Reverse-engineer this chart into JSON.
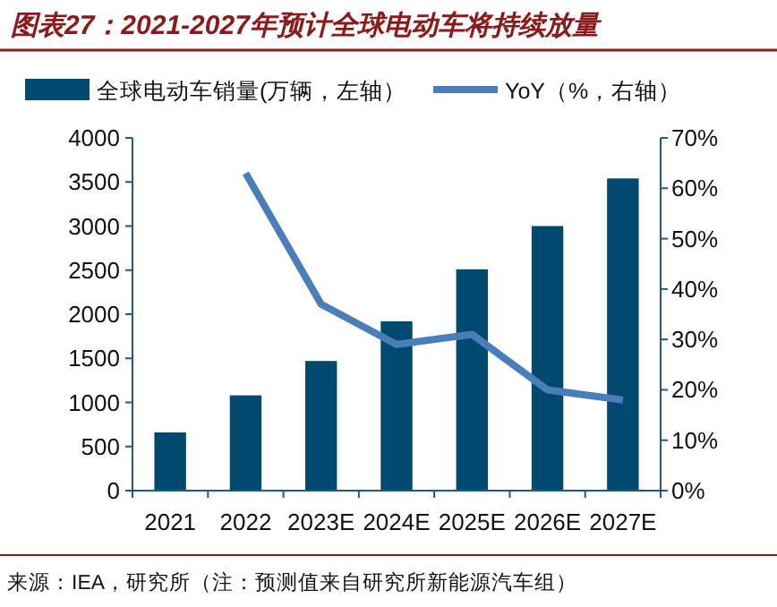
{
  "chart_data": {
    "type": "bar",
    "title": "图表27：2021-2027年预计全球电动车将持续放量",
    "categories": [
      "2021",
      "2022",
      "2023E",
      "2024E",
      "2025E",
      "2026E",
      "2027E"
    ],
    "series": [
      {
        "name": "全球电动车销量(万辆，左轴）",
        "color": "#004a70",
        "values": [
          660,
          1080,
          1470,
          1920,
          2510,
          3000,
          3540
        ]
      },
      {
        "name": "YoY（%，右轴）",
        "type": "line",
        "axis": "y2",
        "color": "#4a7ebb",
        "values": [
          null,
          63,
          37,
          29,
          31,
          20,
          18
        ]
      }
    ],
    "ylim": [
      0,
      4000
    ],
    "yticks": [
      0,
      500,
      1000,
      1500,
      2000,
      2500,
      3000,
      3500,
      4000
    ],
    "y2lim": [
      0,
      70
    ],
    "y2ticks": [
      {
        "value": 0,
        "label": "0%"
      },
      {
        "value": 10,
        "label": "10%"
      },
      {
        "value": 20,
        "label": "20%"
      },
      {
        "value": 30,
        "label": "30%"
      },
      {
        "value": 40,
        "label": "40%"
      },
      {
        "value": 50,
        "label": "50%"
      },
      {
        "value": 60,
        "label": "60%"
      },
      {
        "value": 70,
        "label": "70%"
      }
    ],
    "legend": "top",
    "annotations": [
      "来源：IEA，研究所（注：预测值来自研究所新能源汽车组）"
    ]
  }
}
